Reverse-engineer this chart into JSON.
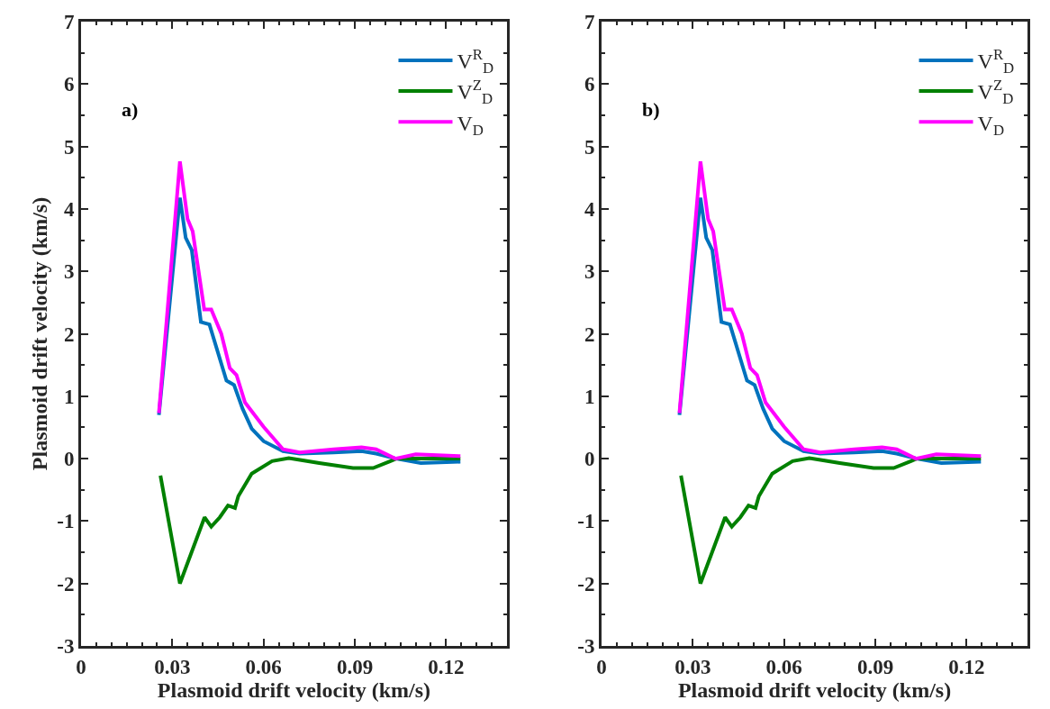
{
  "chart_data": [
    {
      "type": "line",
      "annotations": [
        "a)"
      ],
      "xlabel": "Plasmoid drift velocity (km/s)",
      "ylabel": "Plasmoid drift velocity (km/s)",
      "xlim": [
        0,
        0.14
      ],
      "xticks": [
        0,
        0.03,
        0.06,
        0.09,
        0.12
      ],
      "ylim": [
        -3,
        7
      ],
      "yticks": [
        -3,
        -2,
        -1,
        0,
        1,
        2,
        3,
        4,
        5,
        6,
        7
      ],
      "legend": "top right",
      "line_style": "solid",
      "marker": "none",
      "series": [
        {
          "name": "V$^{R}$$_{D}$",
          "color": "#0072bd",
          "x": [
            0.0256,
            0.0325,
            0.0344,
            0.0364,
            0.0394,
            0.0422,
            0.0478,
            0.0503,
            0.0531,
            0.0561,
            0.06,
            0.0664,
            0.0719,
            0.083,
            0.0922,
            0.097,
            0.1036,
            0.1117,
            0.1247
          ],
          "values": [
            0.7,
            4.18,
            3.54,
            3.34,
            2.19,
            2.15,
            1.25,
            1.18,
            0.8,
            0.48,
            0.28,
            0.12,
            0.08,
            0.1,
            0.12,
            0.08,
            0.0,
            -0.07,
            -0.05
          ]
        },
        {
          "name": "V$^{Z}$$_{D}$",
          "color": "#008000",
          "x": [
            0.0261,
            0.0325,
            0.0406,
            0.0428,
            0.0456,
            0.0483,
            0.0506,
            0.0517,
            0.0561,
            0.0628,
            0.0683,
            0.0783,
            0.0894,
            0.096,
            0.1017,
            0.1036,
            0.1247
          ],
          "values": [
            -0.27,
            -2.0,
            -0.94,
            -1.09,
            -0.94,
            -0.75,
            -0.79,
            -0.6,
            -0.24,
            -0.04,
            0.01,
            -0.07,
            -0.15,
            -0.15,
            -0.04,
            0.0,
            0.0
          ]
        },
        {
          "name": "V$_{D}$",
          "color": "#ff00ff",
          "x": [
            0.0256,
            0.0325,
            0.035,
            0.0367,
            0.0405,
            0.0428,
            0.0461,
            0.0489,
            0.0511,
            0.0539,
            0.06,
            0.0664,
            0.0719,
            0.083,
            0.0922,
            0.097,
            0.1033,
            0.11,
            0.1247
          ],
          "values": [
            0.73,
            4.76,
            3.84,
            3.64,
            2.39,
            2.39,
            2.0,
            1.45,
            1.34,
            0.9,
            0.51,
            0.15,
            0.1,
            0.15,
            0.18,
            0.15,
            0.0,
            0.07,
            0.04
          ]
        }
      ]
    },
    {
      "type": "line",
      "annotations": [
        "b)"
      ],
      "xlabel": "Plasmoid drift velocity (km/s)",
      "xlim": [
        0,
        0.14
      ],
      "xticks": [
        0,
        0.03,
        0.06,
        0.09,
        0.12
      ],
      "ylim": [
        -3,
        7
      ],
      "yticks": [
        -3,
        -2,
        -1,
        0,
        1,
        2,
        3,
        4,
        5,
        6,
        7
      ],
      "legend": "top right",
      "line_style": "solid",
      "marker": "none",
      "series": [
        {
          "name": "V$^{R}$$_{D}$",
          "color": "#0072bd",
          "x": [
            0.0256,
            0.0325,
            0.0344,
            0.0364,
            0.0394,
            0.0422,
            0.0478,
            0.0503,
            0.0531,
            0.0561,
            0.06,
            0.0664,
            0.0719,
            0.083,
            0.0922,
            0.097,
            0.1036,
            0.1117,
            0.1247
          ],
          "values": [
            0.7,
            4.18,
            3.54,
            3.34,
            2.19,
            2.15,
            1.25,
            1.18,
            0.8,
            0.48,
            0.28,
            0.12,
            0.08,
            0.1,
            0.12,
            0.08,
            0.0,
            -0.07,
            -0.05
          ]
        },
        {
          "name": "V$^{Z}$$_{D}$",
          "color": "#008000",
          "x": [
            0.0261,
            0.0325,
            0.0406,
            0.0428,
            0.0456,
            0.0483,
            0.0506,
            0.0517,
            0.0561,
            0.0628,
            0.0683,
            0.0783,
            0.0894,
            0.096,
            0.1017,
            0.1036,
            0.1247
          ],
          "values": [
            -0.27,
            -2.0,
            -0.94,
            -1.09,
            -0.94,
            -0.75,
            -0.79,
            -0.6,
            -0.24,
            -0.04,
            0.01,
            -0.07,
            -0.15,
            -0.15,
            -0.04,
            0.0,
            0.0
          ]
        },
        {
          "name": "V$_{D}$",
          "color": "#ff00ff",
          "x": [
            0.0256,
            0.0325,
            0.035,
            0.0367,
            0.0405,
            0.0428,
            0.0461,
            0.0489,
            0.0511,
            0.0539,
            0.06,
            0.0664,
            0.0719,
            0.083,
            0.0922,
            0.097,
            0.1033,
            0.11,
            0.1247
          ],
          "values": [
            0.73,
            4.76,
            3.84,
            3.64,
            2.39,
            2.39,
            2.0,
            1.45,
            1.34,
            0.9,
            0.51,
            0.15,
            0.1,
            0.15,
            0.18,
            0.15,
            0.0,
            0.07,
            0.04
          ]
        }
      ]
    }
  ]
}
